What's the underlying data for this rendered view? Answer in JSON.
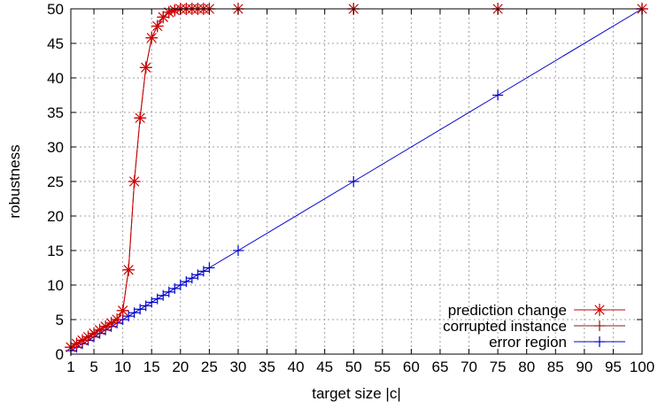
{
  "chart_data": {
    "type": "line",
    "xlabel": "target size |c|",
    "ylabel": "robustness",
    "xlim": [
      1,
      100
    ],
    "ylim": [
      0,
      50
    ],
    "xticks": [
      1,
      5,
      10,
      15,
      20,
      25,
      30,
      35,
      40,
      45,
      50,
      55,
      60,
      65,
      70,
      75,
      80,
      85,
      90,
      95,
      100
    ],
    "yticks": [
      0,
      5,
      10,
      15,
      20,
      25,
      30,
      35,
      40,
      45,
      50
    ],
    "grid": true,
    "legend_position": "bottom-right",
    "series": [
      {
        "name": "prediction change",
        "color": "#cc0000",
        "marker": "asterisk",
        "x": [
          1,
          2,
          3,
          4,
          5,
          6,
          7,
          8,
          9,
          10,
          11,
          12,
          13,
          14,
          15,
          16,
          17,
          18,
          19,
          20,
          21,
          22,
          23,
          24,
          25,
          30,
          50,
          75,
          100
        ],
        "y": [
          1,
          1.5,
          2,
          2.5,
          3,
          3.5,
          4,
          4.5,
          5,
          6.3,
          12.2,
          25,
          34.2,
          41.5,
          45.8,
          47.5,
          48.8,
          49.5,
          49.8,
          50,
          50,
          50,
          50,
          50,
          50,
          50,
          50,
          50,
          50
        ]
      },
      {
        "name": "corrupted instance",
        "color": "#8b1a1a",
        "marker": "plus",
        "x": [
          1,
          2,
          3,
          4,
          5,
          6,
          7,
          8,
          9,
          10,
          11,
          12,
          13,
          14,
          15,
          16,
          17,
          18,
          19,
          20,
          21,
          22,
          23,
          24,
          25,
          30,
          50,
          75,
          100
        ],
        "y": [
          1,
          1.5,
          2,
          2.5,
          3,
          3.5,
          4,
          4.5,
          5,
          6.3,
          12.2,
          25,
          34.2,
          41.5,
          45.8,
          47.5,
          48.8,
          49.5,
          49.8,
          50,
          50,
          50,
          50,
          50,
          50,
          50,
          50,
          50,
          50
        ]
      },
      {
        "name": "error region",
        "color": "#0000cc",
        "marker": "plus",
        "x": [
          1,
          2,
          3,
          4,
          5,
          6,
          7,
          8,
          9,
          10,
          11,
          12,
          13,
          14,
          15,
          16,
          17,
          18,
          19,
          20,
          21,
          22,
          23,
          24,
          25,
          30,
          50,
          75,
          100
        ],
        "y": [
          0.5,
          1,
          1.5,
          2,
          2.5,
          3,
          3.5,
          4,
          4.5,
          5,
          5.5,
          6,
          6.5,
          7,
          7.5,
          8,
          8.5,
          9,
          9.5,
          10,
          10.5,
          11,
          11.5,
          12,
          12.5,
          15,
          25,
          37.5,
          50
        ]
      }
    ]
  }
}
